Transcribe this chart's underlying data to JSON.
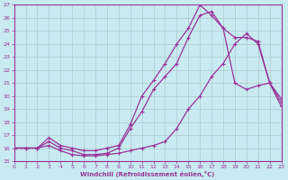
{
  "xlabel": "Windchill (Refroidissement éolien,°C)",
  "xlim": [
    0,
    23
  ],
  "ylim": [
    15,
    27
  ],
  "xticks": [
    0,
    1,
    2,
    3,
    4,
    5,
    6,
    7,
    8,
    9,
    10,
    11,
    12,
    13,
    14,
    15,
    16,
    17,
    18,
    19,
    20,
    21,
    22,
    23
  ],
  "yticks": [
    15,
    16,
    17,
    18,
    19,
    20,
    21,
    22,
    23,
    24,
    25,
    26,
    27
  ],
  "bg_color": "#c8eaf0",
  "line_color": "#993399",
  "grid_color": "#b0c8d0",
  "curve1_x": [
    0,
    1,
    2,
    3,
    4,
    5,
    6,
    7,
    8,
    9,
    10,
    11,
    12,
    13,
    14,
    15,
    16,
    17,
    18,
    19,
    20,
    21,
    22,
    23
  ],
  "curve1_y": [
    16.0,
    16.0,
    16.0,
    16.2,
    15.8,
    15.5,
    15.4,
    15.4,
    15.5,
    15.6,
    15.8,
    16.0,
    16.2,
    16.5,
    17.5,
    19.0,
    20.0,
    21.5,
    22.5,
    24.0,
    24.8,
    24.0,
    21.0,
    19.2
  ],
  "curve2_x": [
    0,
    1,
    2,
    3,
    4,
    5,
    6,
    7,
    8,
    9,
    10,
    11,
    12,
    13,
    14,
    15,
    16,
    17,
    18,
    19,
    20,
    21,
    22,
    23
  ],
  "curve2_y": [
    16.0,
    16.0,
    16.0,
    16.5,
    16.0,
    15.8,
    15.5,
    15.5,
    15.6,
    16.0,
    17.5,
    18.8,
    20.5,
    21.5,
    22.5,
    24.5,
    26.2,
    26.5,
    25.2,
    21.0,
    20.5,
    20.8,
    21.0,
    19.5
  ],
  "curve3_x": [
    0,
    1,
    2,
    3,
    4,
    5,
    6,
    7,
    8,
    9,
    10,
    11,
    12,
    13,
    14,
    15,
    16,
    17,
    18,
    19,
    20,
    21,
    22,
    23
  ],
  "curve3_y": [
    16.0,
    16.0,
    16.0,
    16.8,
    16.2,
    16.0,
    15.8,
    15.8,
    16.0,
    16.2,
    17.8,
    20.0,
    21.2,
    22.5,
    24.0,
    25.2,
    27.0,
    26.2,
    25.2,
    24.5,
    24.5,
    24.2,
    21.0,
    19.8
  ]
}
